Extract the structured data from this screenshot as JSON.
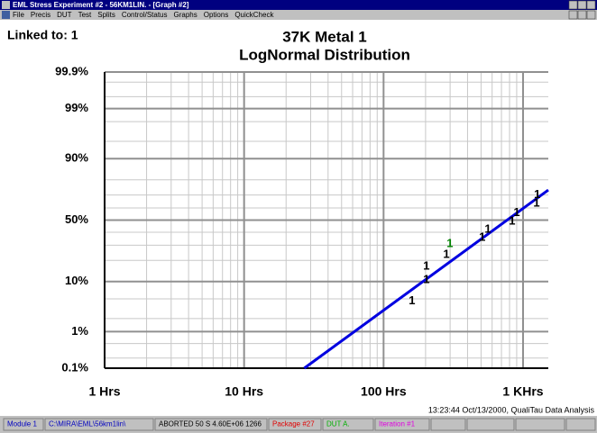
{
  "window": {
    "title": "EML Stress Experiment #2 - 56KM1LIN. - [Graph #2]",
    "menu": [
      "File",
      "Precis",
      "DUT",
      "Test",
      "Splits",
      "Control/Status",
      "Graphs",
      "Options",
      "QuickCheck"
    ]
  },
  "linked_to": "Linked to: 1",
  "timestamp": "13:23:44 Oct/13/2000, QualiTau Data Analysis",
  "status_bar": [
    {
      "text": "Module 1",
      "color": "#0000c0"
    },
    {
      "text": "C:\\MIRA\\EML\\56km1lin\\",
      "color": "#0000c0"
    },
    {
      "text": "ABORTED 50 S 4.60E+06 1266",
      "color": "#000000"
    },
    {
      "text": "Package #27",
      "color": "#e00000"
    },
    {
      "text": "DUT A.",
      "color": "#00b000"
    },
    {
      "text": "Iteration #1",
      "color": "#e000e0"
    }
  ],
  "chart_data": {
    "type": "probability",
    "title": "37K Metal 1",
    "subtitle": "LogNormal Distribution",
    "xscale": "log",
    "yscale": "normal-probability",
    "xlim": [
      1,
      1517
    ],
    "ylim": [
      0.1,
      99.9
    ],
    "xticks": [
      {
        "value": 1,
        "label": "1 Hrs"
      },
      {
        "value": 10,
        "label": "10 Hrs"
      },
      {
        "value": 100,
        "label": "100 Hrs"
      },
      {
        "value": 1000,
        "label": "1 KHrs"
      }
    ],
    "xminor": [
      2,
      3,
      4,
      5,
      6,
      7,
      8,
      9,
      20,
      30,
      40,
      50,
      60,
      70,
      80,
      90,
      200,
      300,
      400,
      500,
      600,
      700,
      800,
      900
    ],
    "yticks": [
      {
        "value": 0.1,
        "label": "0.1%"
      },
      {
        "value": 1,
        "label": "1%"
      },
      {
        "value": 10,
        "label": "10%"
      },
      {
        "value": 50,
        "label": "50%"
      },
      {
        "value": 90,
        "label": "90%"
      },
      {
        "value": 99,
        "label": "99%"
      },
      {
        "value": 99.9,
        "label": "99.9%"
      }
    ],
    "yminor": [
      0.2,
      0.5,
      2,
      5,
      20,
      30,
      40,
      60,
      70,
      80,
      95,
      98,
      99.5,
      99.8
    ],
    "grid": true,
    "series": [
      {
        "name": "1",
        "color": "#000000",
        "x": [
          160,
          203,
          203,
          282,
          510,
          559,
          835,
          900,
          1250,
          1265
        ],
        "values": [
          4.5,
          16.6,
          10.6,
          23.5,
          35.7,
          42,
          49,
          56,
          63.6,
          70
        ]
      },
      {
        "name": "1",
        "color": "#008000",
        "x": [
          299
        ],
        "values": [
          31
        ]
      }
    ],
    "fit_line": {
      "color": "#0000e0",
      "x": [
        27,
        1517
      ],
      "values": [
        0.1,
        73.5
      ]
    }
  }
}
